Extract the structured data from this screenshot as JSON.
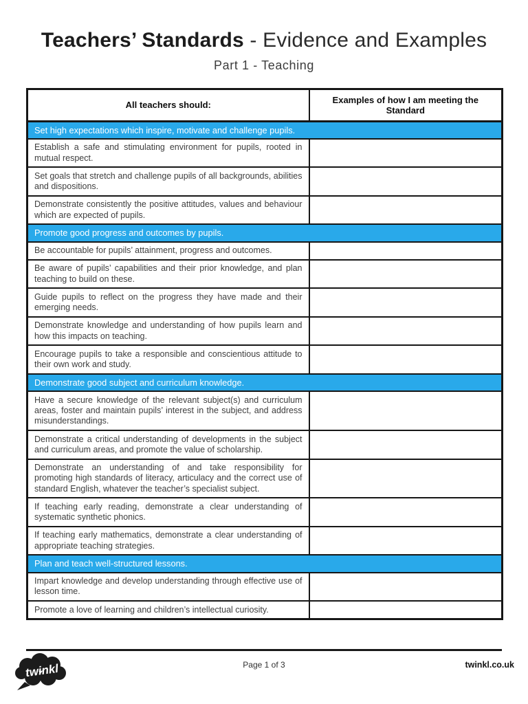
{
  "header": {
    "title_bold": "Teachers’ Standards",
    "title_rest": " - Evidence and Examples",
    "subtitle": "Part 1 - Teaching"
  },
  "table": {
    "column_headers": [
      "All teachers should:",
      "Examples of how I am meeting the Standard"
    ],
    "sections": [
      {
        "heading": "Set high expectations which inspire, motivate and challenge pupils.",
        "rows": [
          "Establish a safe and stimulating environment for pupils, rooted in mutual respect.",
          "Set goals that stretch and challenge pupils of all backgrounds, abilities and dispositions.",
          "Demonstrate consistently the positive attitudes, values and behaviour which are expected of pupils."
        ]
      },
      {
        "heading": "Promote good progress and outcomes by pupils.",
        "rows": [
          "Be accountable for pupils’ attainment, progress and outcomes.",
          "Be aware of pupils’ capabilities and their prior knowledge, and plan teaching to build on these.",
          "Guide pupils to reflect on the progress they have made and their emerging needs.",
          "Demonstrate knowledge and understanding of how pupils learn and how this impacts on teaching.",
          "Encourage pupils to take a responsible and conscientious attitude to their own work and study."
        ]
      },
      {
        "heading": "Demonstrate good subject and curriculum knowledge.",
        "rows": [
          "Have a secure knowledge of the relevant subject(s) and curriculum areas, foster and maintain pupils’ interest in the subject, and address misunderstandings.",
          "Demonstrate a critical understanding of developments in the subject and curriculum areas, and promote the value of scholarship.",
          "Demonstrate an understanding of and take responsibility for promoting high standards of literacy, articulacy and the correct use of standard English, whatever the teacher’s specialist subject.",
          "If teaching early reading, demonstrate a clear understanding of systematic synthetic phonics.",
          "If teaching early mathematics, demonstrate a clear understanding of appropriate teaching strategies."
        ]
      },
      {
        "heading": "Plan and teach well-structured lessons.",
        "rows": [
          "Impart knowledge and develop understanding through effective use of lesson time.",
          "Promote a love of learning and children’s intellectual curiosity."
        ]
      }
    ]
  },
  "footer": {
    "logo_text": "twinkl",
    "page_indicator": "Page 1 of 3",
    "site": "twinkl.co.uk"
  },
  "colors": {
    "section_header_blue": "#29A9EA",
    "border_black": "#161616"
  }
}
